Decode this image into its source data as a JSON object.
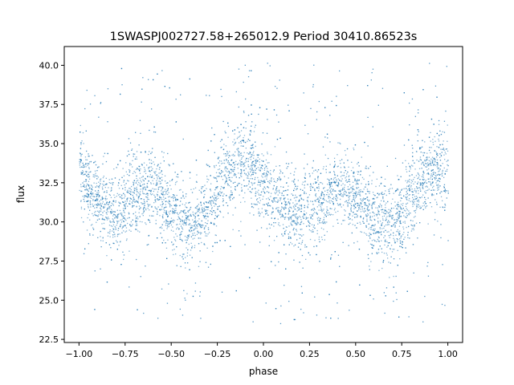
{
  "chart_data": {
    "type": "scatter",
    "title": "1SWASPJ002727.58+265012.9 Period 30410.86523s",
    "xlabel": "phase",
    "ylabel": "flux",
    "xlim": [
      -1.08,
      1.08
    ],
    "ylim": [
      22.3,
      41.2
    ],
    "xticks": [
      -1.0,
      -0.75,
      -0.5,
      -0.25,
      0.0,
      0.25,
      0.5,
      0.75,
      1.0
    ],
    "xtick_labels": [
      "−1.00",
      "−0.75",
      "−0.50",
      "−0.25",
      "0.00",
      "0.25",
      "0.50",
      "0.75",
      "1.00"
    ],
    "yticks": [
      22.5,
      25.0,
      27.5,
      30.0,
      32.5,
      35.0,
      37.5,
      40.0
    ],
    "ytick_labels": [
      "22.5",
      "25.0",
      "27.5",
      "30.0",
      "32.5",
      "35.0",
      "37.5",
      "40.0"
    ],
    "grid": false,
    "legend": "none",
    "marker_color": "#1f77b4",
    "series": [
      {
        "phase": [
          -1.0,
          -0.9,
          -0.8,
          -0.7,
          -0.6,
          -0.5,
          -0.4,
          -0.3,
          -0.2,
          -0.1,
          0.0,
          0.1,
          0.2,
          0.3,
          0.4,
          0.5,
          0.6,
          0.7,
          0.8,
          0.9,
          1.0
        ],
        "flux": [
          33.0,
          31.5,
          30.6,
          31.8,
          32.3,
          30.6,
          29.7,
          30.8,
          33.2,
          34.1,
          32.4,
          31.0,
          30.5,
          31.4,
          32.5,
          31.6,
          30.2,
          29.9,
          31.6,
          33.2,
          33.0
        ]
      }
    ]
  }
}
